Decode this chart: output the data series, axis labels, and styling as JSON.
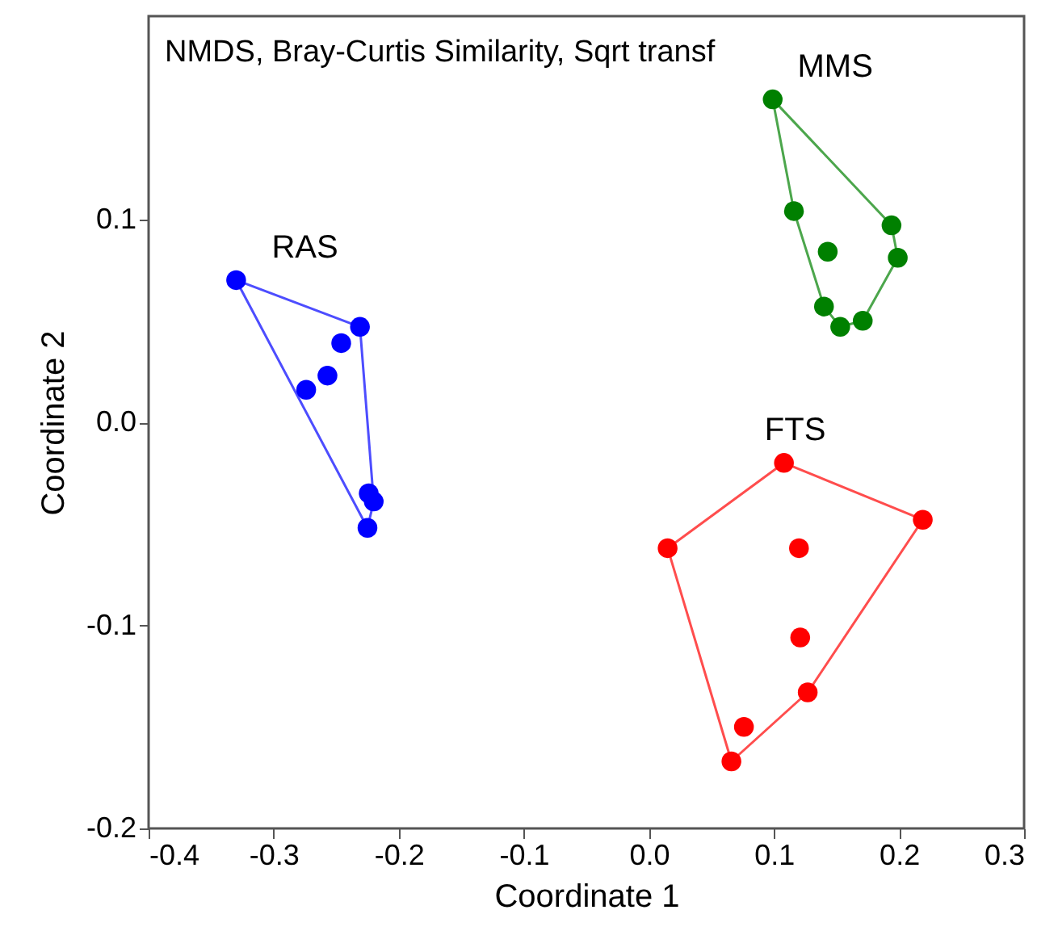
{
  "chart_data": {
    "type": "scatter",
    "title": "NMDS, Bray-Curtis Similarity, Sqrt transf",
    "xlabel": "Coordinate 1",
    "ylabel": "Coordinate 2",
    "xlim": [
      -0.4,
      0.3
    ],
    "xticks": [
      -0.4,
      -0.3,
      -0.2,
      -0.1,
      {
        "value": 0,
        "label": "0.0"
      },
      0.1,
      0.2,
      0.3
    ],
    "ylim": [
      -0.2,
      0.2
    ],
    "yticks": [
      -0.2,
      -0.1,
      {
        "value": 0,
        "label": "0.0"
      },
      0.1
    ],
    "grid": false,
    "series": [
      {
        "name": "RAS",
        "marker": "circle",
        "color": "#0000ff",
        "x": [
          -0.33,
          -0.231,
          -0.246,
          -0.257,
          -0.274,
          -0.224,
          -0.22,
          -0.225
        ],
        "values": [
          0.07,
          0.047,
          0.039,
          0.023,
          0.016,
          -0.035,
          -0.039,
          -0.052
        ]
      },
      {
        "name": "MMS",
        "marker": "circle",
        "color": "#008000",
        "x": [
          0.099,
          0.116,
          0.194,
          0.143,
          0.199,
          0.14,
          0.153,
          0.171
        ],
        "values": [
          0.159,
          0.104,
          0.097,
          0.084,
          0.081,
          0.057,
          0.047,
          0.05
        ]
      },
      {
        "name": "FTS",
        "marker": "circle",
        "color": "#ff0000",
        "x": [
          0.108,
          0.219,
          0.015,
          0.12,
          0.121,
          0.127,
          0.076,
          0.066
        ],
        "values": [
          -0.02,
          -0.048,
          -0.062,
          -0.062,
          -0.106,
          -0.133,
          -0.15,
          -0.167
        ]
      },
      {
        "type": "line",
        "marker": "none",
        "color": "#4d4dff",
        "x": [
          -0.33,
          -0.231,
          -0.22
        ],
        "values": [
          0.07,
          0.047,
          -0.039
        ]
      },
      {
        "type": "line",
        "marker": "none",
        "color": "#4d4dff",
        "x": [
          -0.33,
          -0.225,
          -0.22
        ],
        "values": [
          0.07,
          -0.052,
          -0.039
        ]
      },
      {
        "type": "line",
        "marker": "none",
        "color": "#4ca64c",
        "x": [
          0.099,
          0.194,
          0.199
        ],
        "values": [
          0.159,
          0.097,
          0.081
        ]
      },
      {
        "type": "line",
        "marker": "none",
        "color": "#4ca64c",
        "x": [
          0.099,
          0.116,
          0.14,
          0.153,
          0.171,
          0.199
        ],
        "values": [
          0.159,
          0.104,
          0.057,
          0.047,
          0.05,
          0.081
        ]
      },
      {
        "type": "line",
        "marker": "none",
        "color": "#ff4d4d",
        "x": [
          0.015,
          0.108,
          0.219
        ],
        "values": [
          -0.062,
          -0.02,
          -0.048
        ]
      },
      {
        "type": "line",
        "marker": "none",
        "color": "#ff4d4d",
        "x": [
          0.015,
          0.066,
          0.127,
          0.219
        ],
        "values": [
          -0.062,
          -0.167,
          -0.133,
          -0.048
        ]
      }
    ]
  }
}
